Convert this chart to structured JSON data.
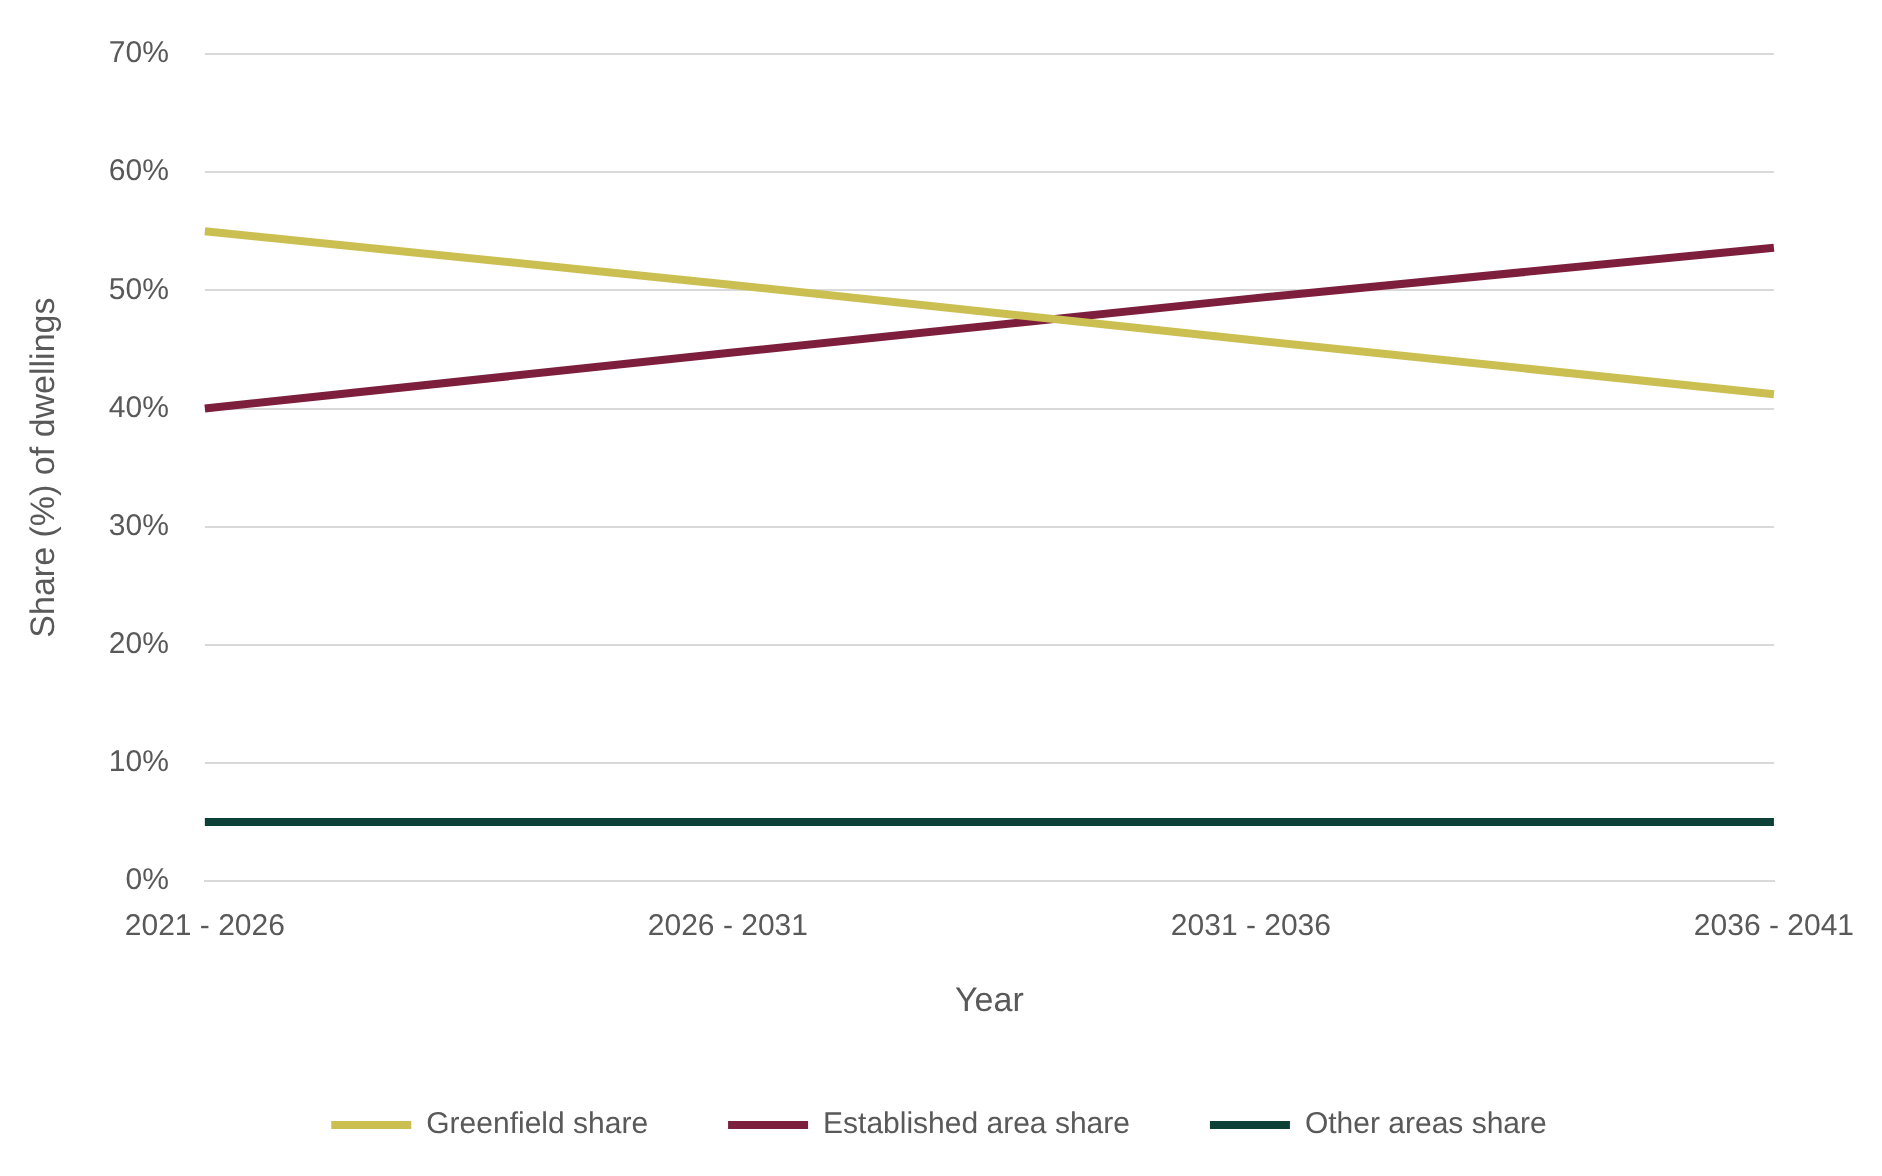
{
  "chart_data": {
    "type": "line",
    "xlabel": "Year",
    "ylabel": "Share (%) of dwellings",
    "categories": [
      "2021 - 2026",
      "2026 - 2031",
      "2031 - 2036",
      "2036 - 2041"
    ],
    "series": [
      {
        "name": "Greenfield share",
        "color": "#cbbf52",
        "values": [
          55,
          50.5,
          45.8,
          41.2
        ]
      },
      {
        "name": "Established area share",
        "color": "#7d1f3c",
        "values": [
          40,
          44.7,
          49.3,
          53.6
        ]
      },
      {
        "name": "Other areas share",
        "color": "#0d4036",
        "values": [
          5,
          5,
          5,
          5
        ]
      }
    ],
    "ylim": [
      0,
      70
    ],
    "yticks": [
      {
        "value": 0,
        "label": "0%"
      },
      {
        "value": 10,
        "label": "10%"
      },
      {
        "value": 20,
        "label": "20%"
      },
      {
        "value": 30,
        "label": "30%"
      },
      {
        "value": 40,
        "label": "40%"
      },
      {
        "value": 50,
        "label": "50%"
      },
      {
        "value": 60,
        "label": "60%"
      },
      {
        "value": 70,
        "label": "70%"
      }
    ],
    "grid": "y",
    "legend": "bottom",
    "marker": "none",
    "line_style": "solid"
  }
}
